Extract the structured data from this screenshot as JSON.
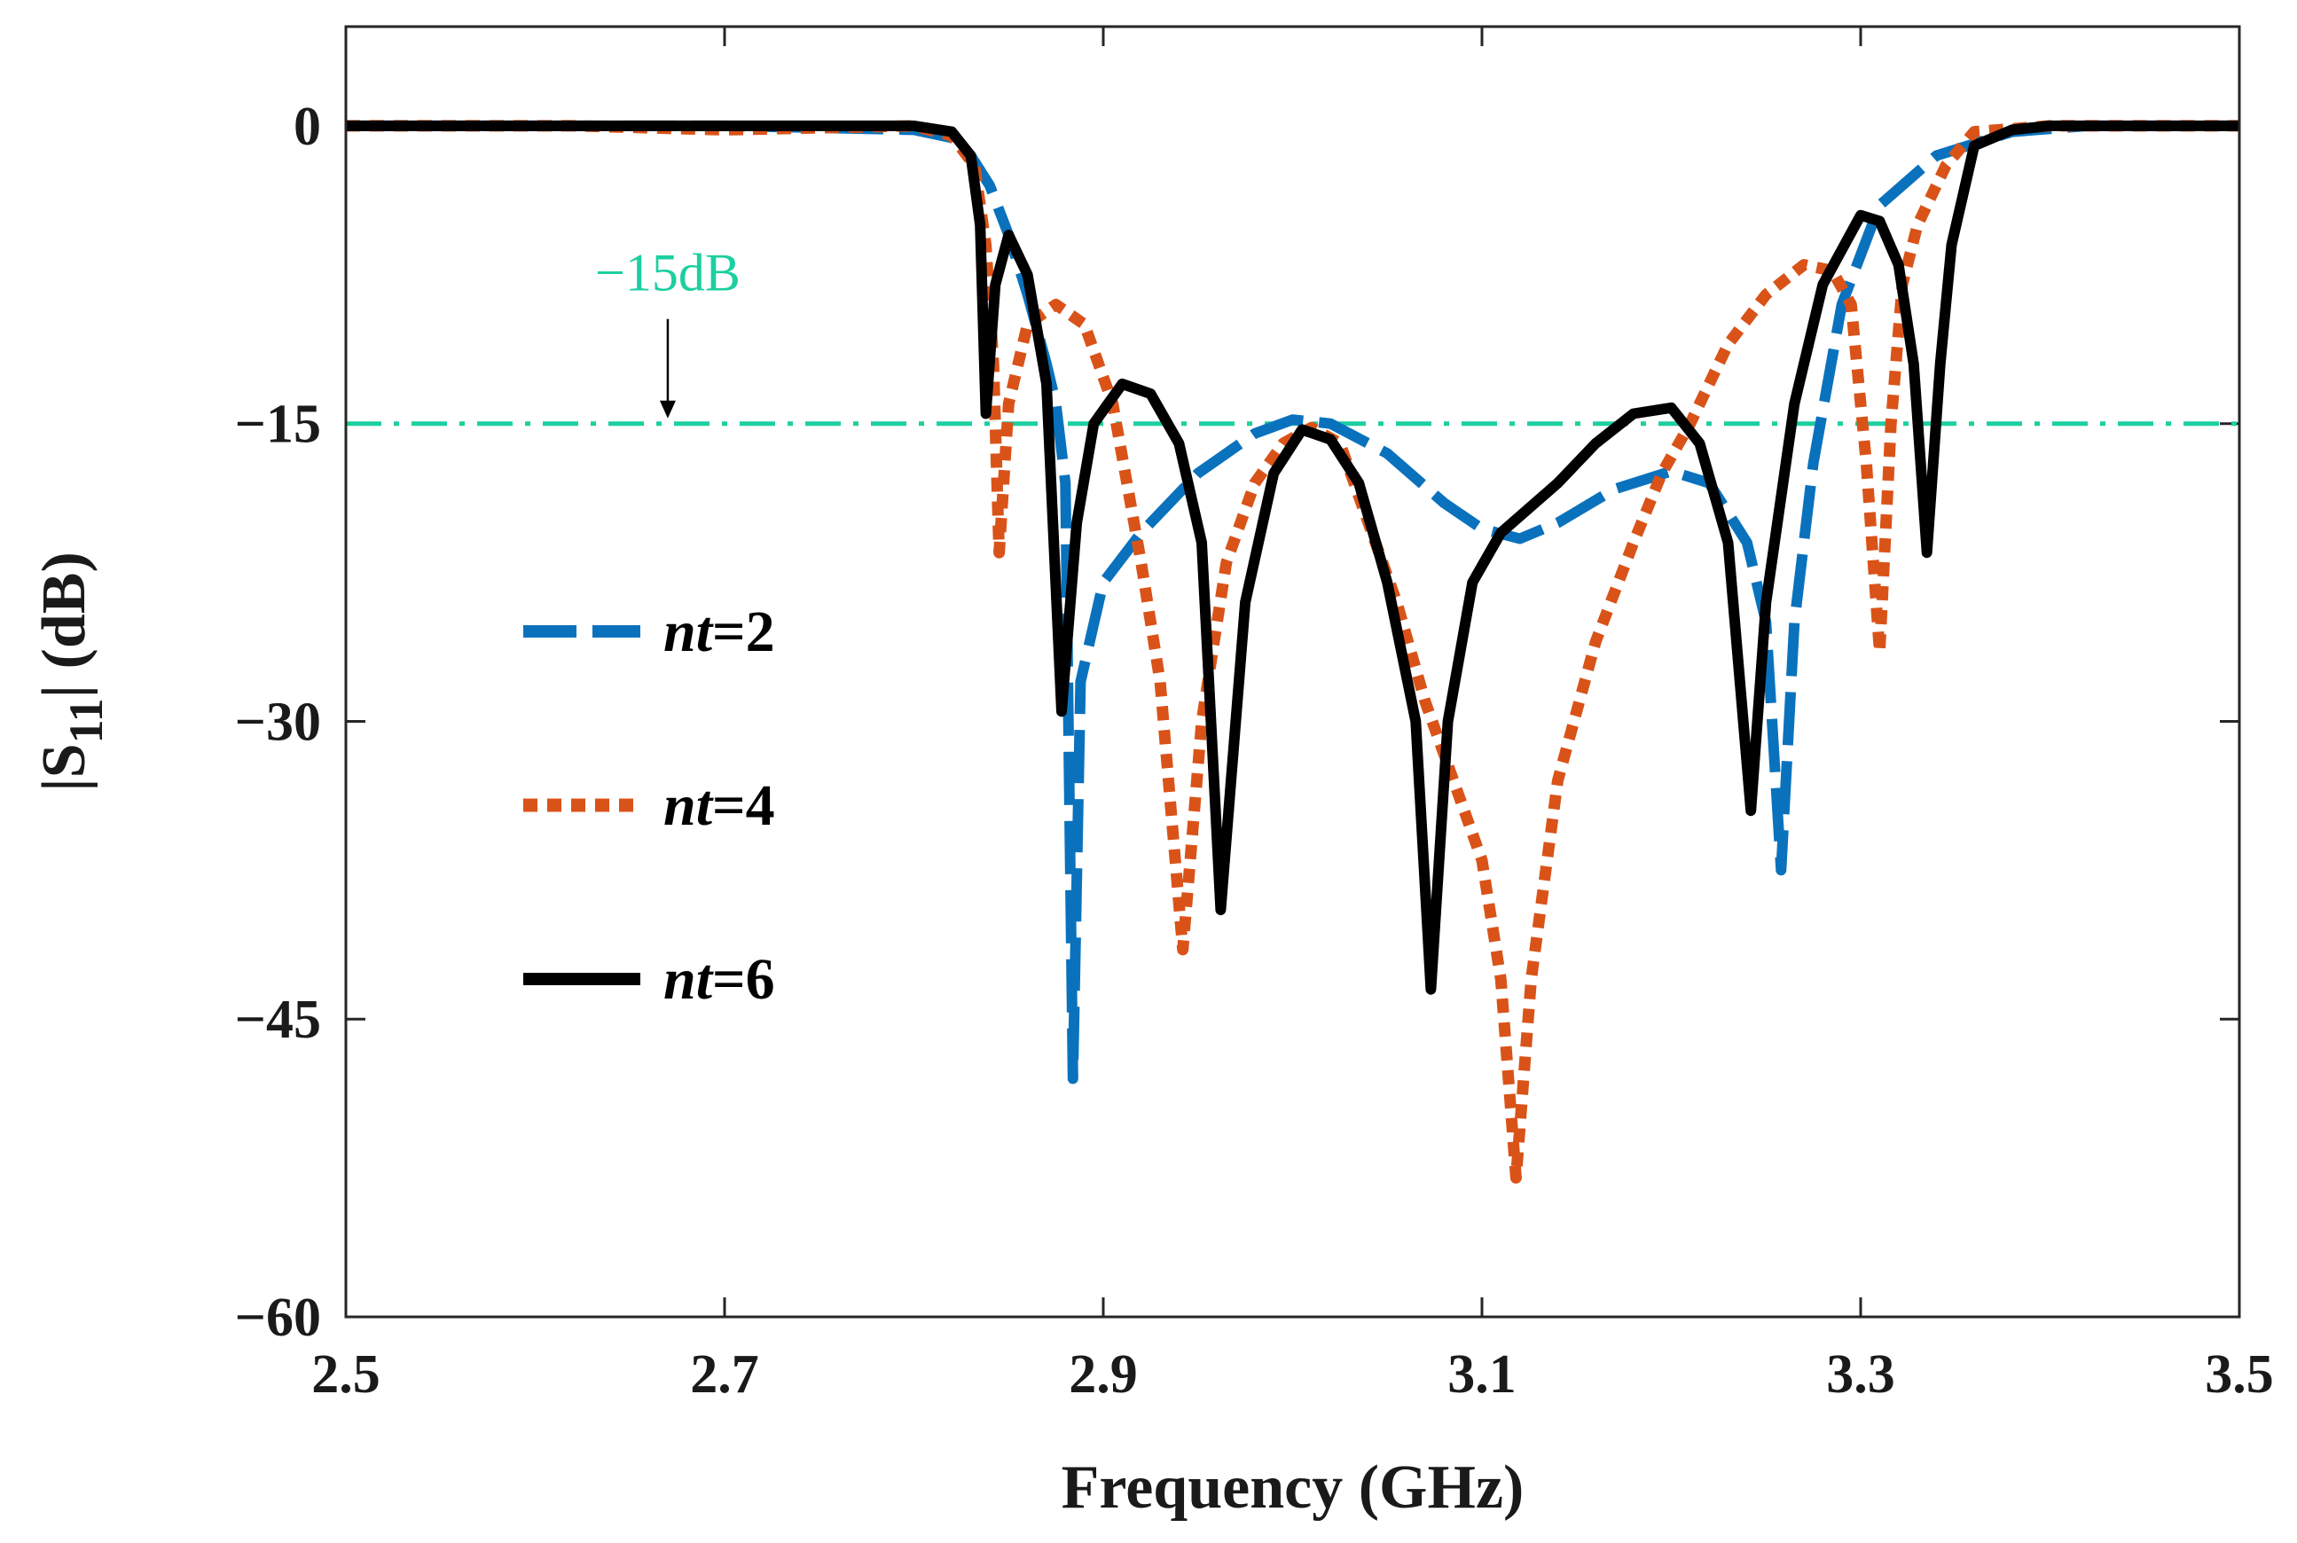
{
  "chart_data": {
    "type": "line",
    "xlabel": "Frequency (GHz)",
    "ylabel": "|S11| (dB)",
    "ylabel_main": "|S",
    "ylabel_sub": "11",
    "ylabel_tail": "| (dB)",
    "xlim": [
      2.5,
      3.5
    ],
    "ylim": [
      -60,
      5
    ],
    "xticks": [
      2.5,
      2.7,
      2.9,
      3.1,
      3.3,
      3.5
    ],
    "xtick_labels": [
      "2.5",
      "2.7",
      "2.9",
      "3.1",
      "3.3",
      "3.5"
    ],
    "yticks": [
      0,
      -15,
      -30,
      -45,
      -60
    ],
    "ytick_labels": [
      "0",
      "−15",
      "−30",
      "−45",
      "−60"
    ],
    "grid": false,
    "legend_position": "center-left",
    "reference_line": {
      "value": -15,
      "label": "−15dB",
      "annotation_x": 2.67,
      "color": "#1ccfa0",
      "style": "dash-dot"
    },
    "series": [
      {
        "name": "nt=2",
        "legend_italic": "nt",
        "legend_rest": "=2",
        "color": "#0a72bd",
        "style": "dashed",
        "points": [
          [
            2.5,
            0
          ],
          [
            2.7,
            0
          ],
          [
            2.8,
            -0.2
          ],
          [
            2.82,
            -0.6
          ],
          [
            2.83,
            -1.5
          ],
          [
            2.84,
            -3
          ],
          [
            2.85,
            -5.5
          ],
          [
            2.86,
            -8.5
          ],
          [
            2.87,
            -12
          ],
          [
            2.875,
            -14
          ],
          [
            2.88,
            -18
          ],
          [
            2.884,
            -48
          ],
          [
            2.888,
            -28
          ],
          [
            2.9,
            -23
          ],
          [
            2.92,
            -20.5
          ],
          [
            2.95,
            -17.5
          ],
          [
            2.98,
            -15.5
          ],
          [
            3.0,
            -14.8
          ],
          [
            3.02,
            -15
          ],
          [
            3.05,
            -16.5
          ],
          [
            3.08,
            -19
          ],
          [
            3.1,
            -20.3
          ],
          [
            3.12,
            -20.8
          ],
          [
            3.14,
            -20
          ],
          [
            3.17,
            -18.3
          ],
          [
            3.2,
            -17.4
          ],
          [
            3.22,
            -18
          ],
          [
            3.24,
            -21
          ],
          [
            3.25,
            -25
          ],
          [
            3.258,
            -37.5
          ],
          [
            3.265,
            -25
          ],
          [
            3.275,
            -17
          ],
          [
            3.29,
            -9
          ],
          [
            3.31,
            -4
          ],
          [
            3.34,
            -1.5
          ],
          [
            3.38,
            -0.3
          ],
          [
            3.42,
            0
          ],
          [
            3.5,
            0
          ]
        ]
      },
      {
        "name": "nt=4",
        "legend_italic": "nt",
        "legend_rest": "=4",
        "color": "#d95319",
        "style": "dotted",
        "points": [
          [
            2.5,
            0
          ],
          [
            2.62,
            0
          ],
          [
            2.7,
            -0.2
          ],
          [
            2.8,
            0
          ],
          [
            2.82,
            -0.5
          ],
          [
            2.832,
            -2
          ],
          [
            2.838,
            -6
          ],
          [
            2.842,
            -12
          ],
          [
            2.845,
            -21.5
          ],
          [
            2.85,
            -14
          ],
          [
            2.86,
            -10
          ],
          [
            2.875,
            -9
          ],
          [
            2.89,
            -10
          ],
          [
            2.905,
            -14
          ],
          [
            2.92,
            -22
          ],
          [
            2.93,
            -28
          ],
          [
            2.942,
            -41.5
          ],
          [
            2.952,
            -30
          ],
          [
            2.965,
            -22
          ],
          [
            2.98,
            -18
          ],
          [
            2.995,
            -16
          ],
          [
            3.01,
            -15.2
          ],
          [
            3.025,
            -16
          ],
          [
            3.04,
            -20
          ],
          [
            3.055,
            -24
          ],
          [
            3.07,
            -29
          ],
          [
            3.085,
            -33
          ],
          [
            3.1,
            -37
          ],
          [
            3.11,
            -43
          ],
          [
            3.118,
            -53
          ],
          [
            3.126,
            -43
          ],
          [
            3.14,
            -33
          ],
          [
            3.16,
            -26
          ],
          [
            3.18,
            -21
          ],
          [
            3.195,
            -17.5
          ],
          [
            3.21,
            -15
          ],
          [
            3.23,
            -11
          ],
          [
            3.25,
            -8.5
          ],
          [
            3.27,
            -7
          ],
          [
            3.285,
            -7.3
          ],
          [
            3.295,
            -9
          ],
          [
            3.303,
            -17
          ],
          [
            3.31,
            -26.5
          ],
          [
            3.316,
            -15
          ],
          [
            3.322,
            -8
          ],
          [
            3.33,
            -5
          ],
          [
            3.345,
            -2
          ],
          [
            3.36,
            -0.3
          ],
          [
            3.4,
            0
          ],
          [
            3.5,
            0
          ]
        ]
      },
      {
        "name": "nt=6",
        "legend_italic": "nt",
        "legend_rest": "=6",
        "color": "#000000",
        "style": "solid",
        "points": [
          [
            2.5,
            0
          ],
          [
            2.8,
            0
          ],
          [
            2.82,
            -0.3
          ],
          [
            2.83,
            -1.5
          ],
          [
            2.835,
            -5
          ],
          [
            2.838,
            -14.5
          ],
          [
            2.843,
            -8
          ],
          [
            2.85,
            -5.5
          ],
          [
            2.86,
            -7.5
          ],
          [
            2.87,
            -13
          ],
          [
            2.878,
            -29.5
          ],
          [
            2.886,
            -20
          ],
          [
            2.895,
            -15
          ],
          [
            2.91,
            -13
          ],
          [
            2.925,
            -13.5
          ],
          [
            2.94,
            -16
          ],
          [
            2.952,
            -21
          ],
          [
            2.962,
            -39.5
          ],
          [
            2.975,
            -24
          ],
          [
            2.99,
            -17.5
          ],
          [
            3.005,
            -15.3
          ],
          [
            3.02,
            -15.8
          ],
          [
            3.035,
            -18
          ],
          [
            3.05,
            -23
          ],
          [
            3.065,
            -30
          ],
          [
            3.073,
            -43.5
          ],
          [
            3.082,
            -30
          ],
          [
            3.095,
            -23
          ],
          [
            3.11,
            -20.5
          ],
          [
            3.14,
            -18
          ],
          [
            3.16,
            -16
          ],
          [
            3.18,
            -14.5
          ],
          [
            3.2,
            -14.2
          ],
          [
            3.215,
            -16
          ],
          [
            3.23,
            -21
          ],
          [
            3.242,
            -34.5
          ],
          [
            3.25,
            -24
          ],
          [
            3.265,
            -14
          ],
          [
            3.28,
            -8
          ],
          [
            3.3,
            -4.5
          ],
          [
            3.31,
            -4.8
          ],
          [
            3.32,
            -7
          ],
          [
            3.328,
            -12
          ],
          [
            3.335,
            -21.5
          ],
          [
            3.342,
            -12
          ],
          [
            3.348,
            -6
          ],
          [
            3.36,
            -1
          ],
          [
            3.38,
            -0.2
          ],
          [
            3.4,
            0
          ],
          [
            3.5,
            0
          ]
        ]
      }
    ]
  }
}
